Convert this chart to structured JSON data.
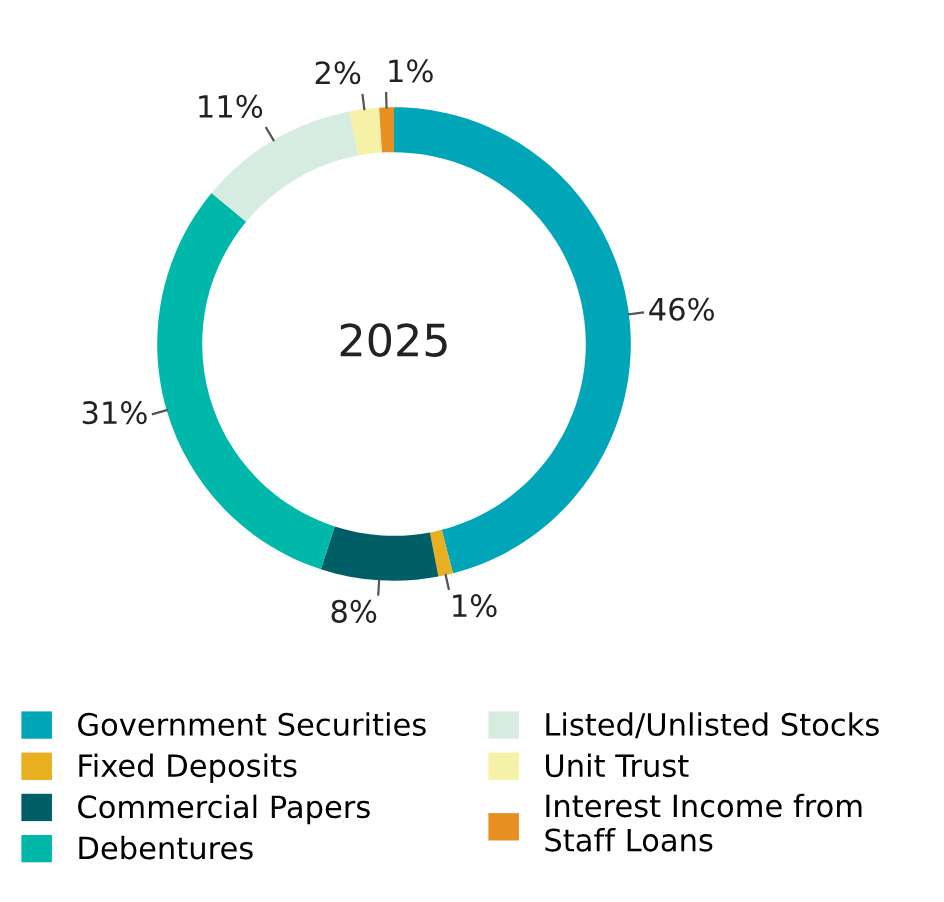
{
  "chart_data": {
    "type": "donut",
    "title": "2025",
    "categories": [
      "Government Securities",
      "Fixed Deposits",
      "Commercial Papers",
      "Debentures",
      "Listed/Unlisted Stocks",
      "Unit Trust",
      "Interest Income from Staff Loans"
    ],
    "values": [
      46,
      1,
      8,
      31,
      11,
      2,
      1
    ],
    "value_labels": [
      "46%",
      "1%",
      "8%",
      "31%",
      "11%",
      "2%",
      "1%"
    ],
    "colors": [
      "#00a6b8",
      "#e8b021",
      "#005f66",
      "#00b8a9",
      "#d6ece0",
      "#f5f2a8",
      "#e88f22"
    ],
    "legend": "bottom"
  }
}
